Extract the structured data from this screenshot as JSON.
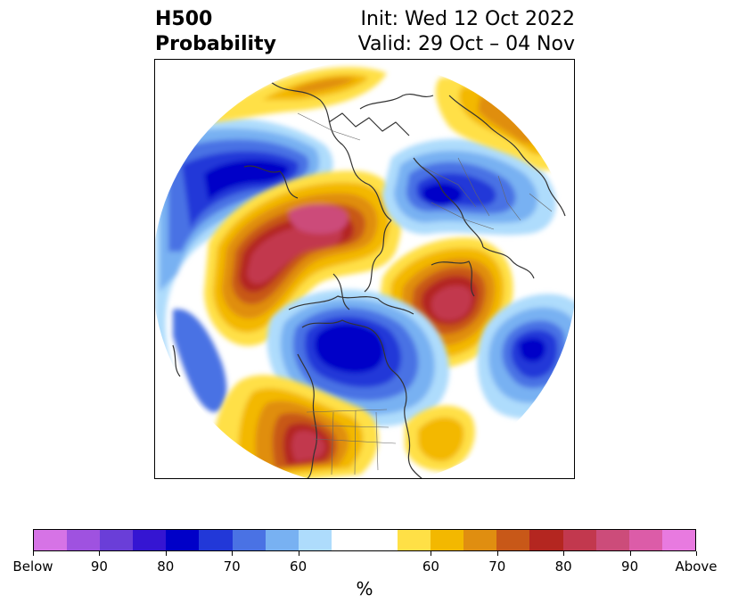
{
  "title": {
    "left_line1": "H500",
    "left_line2": "Probability",
    "right_line1": "Init: Wed 12 Oct 2022",
    "right_line2": "Valid: 29 Oct – 04 Nov"
  },
  "colorbar": {
    "unit": "%",
    "colors": [
      "#d673e6",
      "#9f52e0",
      "#6a3ed8",
      "#3515d2",
      "#0000c8",
      "#2238d8",
      "#4a72e4",
      "#78b1f2",
      "#aedcfc",
      "#ffffff",
      "#ffffff",
      "#ffe046",
      "#f3b800",
      "#e08e10",
      "#c85818",
      "#b42620",
      "#c2384e",
      "#cc4c7a",
      "#dc5ca8",
      "#e87ae0"
    ],
    "tick_labels": [
      "Below",
      "90",
      "80",
      "70",
      "60",
      "60",
      "70",
      "80",
      "90",
      "Above"
    ],
    "tick_fractions": [
      0,
      0.1,
      0.2,
      0.3,
      0.4,
      0.6,
      0.7,
      0.8,
      0.9,
      1.0
    ]
  },
  "map": {
    "projection": "north-polar-stereographic",
    "anomalies": [
      {
        "sign": "below",
        "max_pct": 85,
        "region": "northwest / Siberia"
      },
      {
        "sign": "above",
        "max_pct": 95,
        "region": "central / Arctic-Siberia ridge"
      },
      {
        "sign": "below",
        "max_pct": 80,
        "region": "Scandinavia / Europe"
      },
      {
        "sign": "above",
        "max_pct": 85,
        "region": "Greenland / North Atlantic"
      },
      {
        "sign": "below",
        "max_pct": 80,
        "region": "central Canada"
      },
      {
        "sign": "below",
        "max_pct": 80,
        "region": "western Atlantic"
      },
      {
        "sign": "above",
        "max_pct": 90,
        "region": "southwestern United States"
      }
    ]
  }
}
